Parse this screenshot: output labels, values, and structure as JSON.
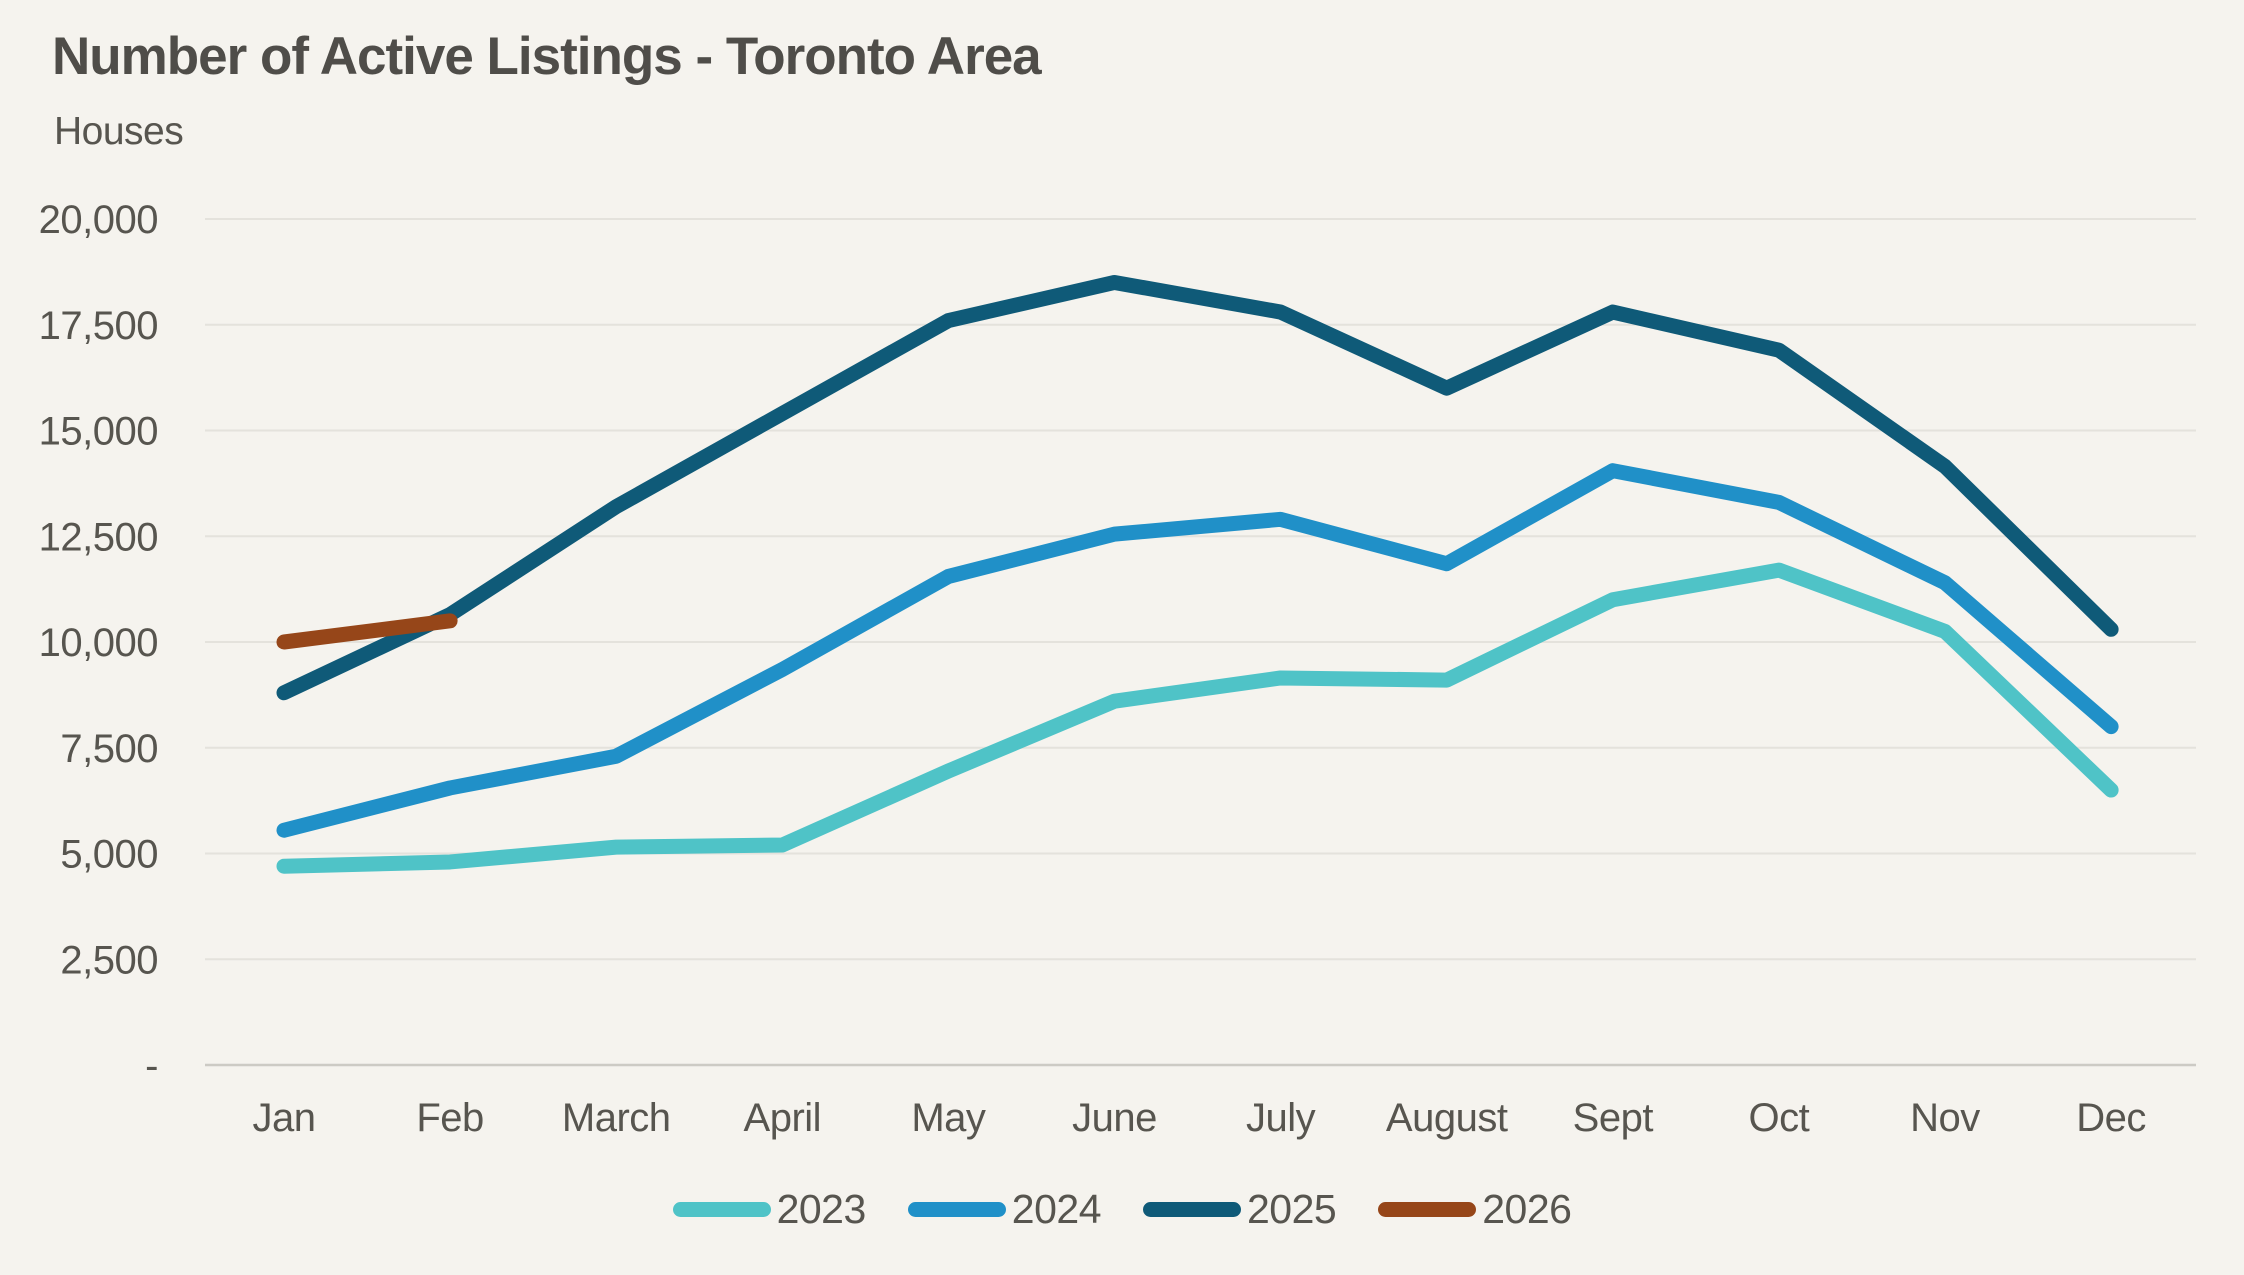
{
  "header": {
    "title": "Number of Active Listings - Toronto Area",
    "subtitle": "Houses"
  },
  "colors": {
    "background": "#F5F3EE",
    "grid_line": "#E4E2DC",
    "zero_axis_line": "#CCCAC4",
    "text": "#57554F",
    "title_text": "#4F4D49"
  },
  "chart_data": {
    "type": "line",
    "title": "Number of Active Listings - Toronto Area",
    "subtitle": "Houses",
    "categories": [
      "Jan",
      "Feb",
      "March",
      "April",
      "May",
      "June",
      "July",
      "August",
      "Sept",
      "Oct",
      "Nov",
      "Dec"
    ],
    "y_axis": {
      "min": 0,
      "max": 20000,
      "tick_step": 2500,
      "tick_labels": [
        "-",
        "2,500",
        "5,000",
        "7,500",
        "10,000",
        "12,500",
        "15,000",
        "17,500",
        "20,000"
      ]
    },
    "grid": true,
    "legend_position": "bottom",
    "series": [
      {
        "name": "2023",
        "color": "#4FC3C7",
        "values": [
          4700,
          4800,
          5150,
          5200,
          6950,
          8600,
          9150,
          9100,
          11000,
          11700,
          10250,
          6500
        ]
      },
      {
        "name": "2024",
        "color": "#2090C8",
        "values": [
          5550,
          6550,
          7300,
          9350,
          11550,
          12550,
          12900,
          11850,
          14050,
          13300,
          11400,
          8000
        ]
      },
      {
        "name": "2025",
        "color": "#0F5A78",
        "values": [
          8800,
          10650,
          13200,
          15400,
          17600,
          18500,
          17800,
          16000,
          17800,
          16900,
          14150,
          10300
        ]
      },
      {
        "name": "2026",
        "color": "#964619",
        "values": [
          10000,
          10500,
          null,
          null,
          null,
          null,
          null,
          null,
          null,
          null,
          null,
          null
        ]
      }
    ]
  }
}
